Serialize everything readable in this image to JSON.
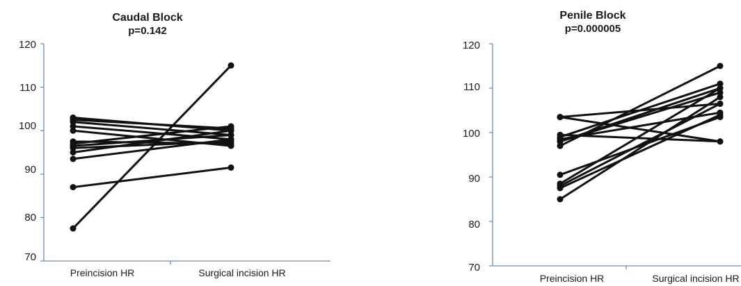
{
  "chart_data": [
    {
      "type": "line",
      "title": "Caudal Block",
      "subtitle": "p=0.142",
      "categories": [
        "Preincision HR",
        "Surgical incision HR"
      ],
      "y_ticks": [
        "120",
        "110",
        "100",
        "90",
        "80",
        "70"
      ],
      "ylim": [
        70,
        120
      ],
      "grid": false,
      "color": "#111111",
      "series": [
        {
          "values": [
            77.5,
            115
          ]
        },
        {
          "values": [
            87,
            91.5
          ]
        },
        {
          "values": [
            93.5,
            98
          ]
        },
        {
          "values": [
            95,
            100
          ]
        },
        {
          "values": [
            96,
            97.5
          ]
        },
        {
          "values": [
            96.5,
            99
          ]
        },
        {
          "values": [
            97,
            101
          ]
        },
        {
          "values": [
            97.5,
            97
          ]
        },
        {
          "values": [
            100,
            96.5
          ]
        },
        {
          "values": [
            101,
            98
          ]
        },
        {
          "values": [
            102,
            99
          ]
        },
        {
          "values": [
            102.5,
            100.5
          ]
        },
        {
          "values": [
            103,
            100
          ]
        }
      ]
    },
    {
      "type": "line",
      "title": "Penile Block",
      "subtitle": "p=0.000005",
      "categories": [
        "Preincision HR",
        "Surgical incision HR"
      ],
      "y_ticks": [
        "120",
        "110",
        "100",
        "90",
        "80",
        "70"
      ],
      "ylim": [
        70,
        120
      ],
      "grid": false,
      "color": "#111111",
      "series": [
        {
          "values": [
            85,
            108
          ]
        },
        {
          "values": [
            87.5,
            104
          ]
        },
        {
          "values": [
            88,
            106.5
          ]
        },
        {
          "values": [
            88.5,
            110
          ]
        },
        {
          "values": [
            90.5,
            103.5
          ]
        },
        {
          "values": [
            97,
            115
          ]
        },
        {
          "values": [
            98,
            109
          ]
        },
        {
          "values": [
            98.5,
            104.5
          ]
        },
        {
          "values": [
            99,
            111
          ]
        },
        {
          "values": [
            99.5,
            98
          ]
        },
        {
          "values": [
            103.5,
            106.5
          ]
        },
        {
          "values": [
            103.5,
            98
          ]
        },
        {
          "values": [
            98,
            110
          ]
        }
      ]
    }
  ]
}
